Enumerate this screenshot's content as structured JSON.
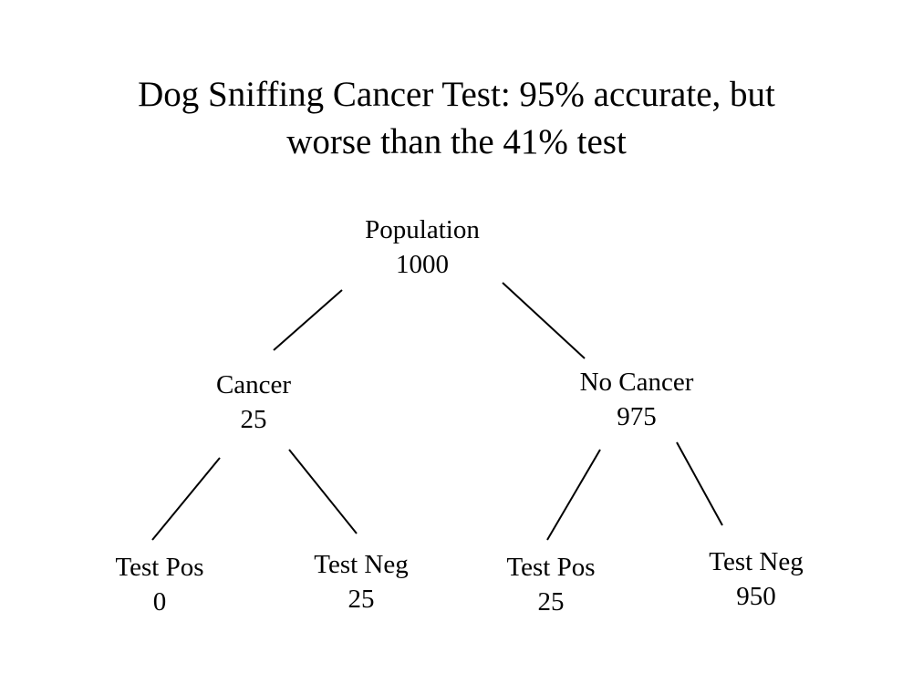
{
  "title": {
    "line1": "Dog Sniffing Cancer Test: 95% accurate, but",
    "line2": "worse than the 41% test"
  },
  "tree": {
    "root": {
      "label": "Population",
      "value": "1000"
    },
    "cancer": {
      "label": "Cancer",
      "value": "25"
    },
    "no_cancer": {
      "label": "No Cancer",
      "value": "975"
    },
    "cancer_test_pos": {
      "label": "Test Pos",
      "value": "0"
    },
    "cancer_test_neg": {
      "label": "Test Neg",
      "value": "25"
    },
    "no_cancer_test_pos": {
      "label": "Test Pos",
      "value": "25"
    },
    "no_cancer_test_neg": {
      "label": "Test Neg",
      "value": "950"
    }
  }
}
